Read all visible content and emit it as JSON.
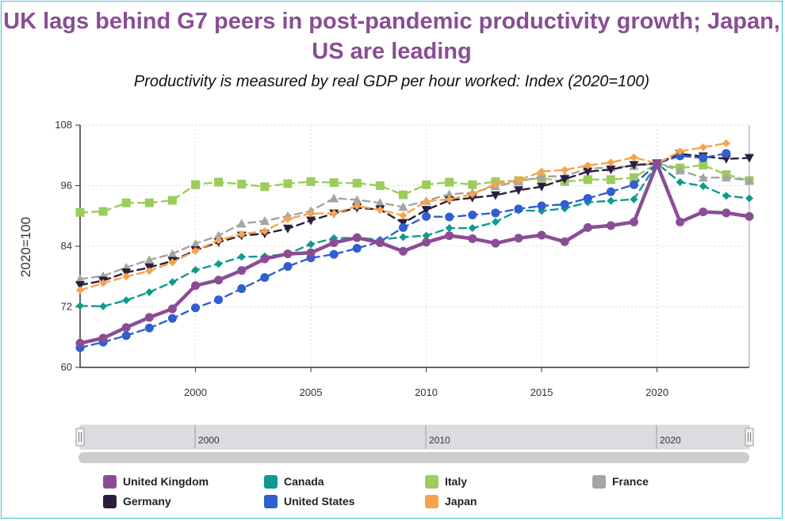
{
  "title": "UK lags behind G7 peers in post-pandemic productivity growth; Japan, US are leading",
  "subtitle": "Productivity is measured by real GDP per hour worked: Index (2020=100)",
  "navigator": {
    "labels": [
      "2000",
      "2010",
      "2020"
    ]
  },
  "chart_data": {
    "type": "line",
    "title": "UK lags behind G7 peers in post-pandemic productivity growth; Japan, US are leading",
    "subtitle": "Productivity is measured by real GDP per hour worked: Index (2020=100)",
    "ylabel": "2020=100",
    "xlabel": "",
    "xlim": [
      1995,
      2024
    ],
    "ylim": [
      60,
      108
    ],
    "x_ticks": [
      2000,
      2005,
      2010,
      2015,
      2020
    ],
    "y_ticks": [
      60,
      72,
      84,
      96,
      108
    ],
    "grid": true,
    "legend_position": "bottom",
    "x": [
      1995,
      1996,
      1997,
      1998,
      1999,
      2000,
      2001,
      2002,
      2003,
      2004,
      2005,
      2006,
      2007,
      2008,
      2009,
      2010,
      2011,
      2012,
      2013,
      2014,
      2015,
      2016,
      2017,
      2018,
      2019,
      2020,
      2021,
      2022,
      2023,
      2024
    ],
    "series": [
      {
        "name": "United Kingdom",
        "color": "#8a4d95",
        "marker": "circle",
        "dash": "solid",
        "values": [
          64.8,
          65.8,
          67.9,
          69.9,
          71.6,
          76.2,
          77.3,
          79.2,
          81.5,
          82.5,
          82.7,
          84.7,
          85.7,
          84.7,
          83.0,
          84.8,
          86.1,
          85.5,
          84.6,
          85.6,
          86.2,
          84.9,
          87.7,
          88.1,
          88.8,
          100.3,
          88.8,
          90.8,
          90.6,
          89.9
        ]
      },
      {
        "name": "Canada",
        "color": "#0f9a8f",
        "marker": "diamond",
        "dash": "dashed",
        "values": [
          72.2,
          72.1,
          73.3,
          74.9,
          76.9,
          79.3,
          80.5,
          81.9,
          82.0,
          82.5,
          84.4,
          85.6,
          85.7,
          85.3,
          85.8,
          86.1,
          87.6,
          87.6,
          88.8,
          91.1,
          91.0,
          91.5,
          92.7,
          93.0,
          93.3,
          100.4,
          96.7,
          95.9,
          94.0,
          93.5
        ]
      },
      {
        "name": "Italy",
        "color": "#9ccc5c",
        "marker": "square",
        "dash": "dashed",
        "values": [
          90.7,
          90.9,
          92.6,
          92.6,
          93.1,
          96.2,
          96.7,
          96.3,
          95.8,
          96.4,
          96.8,
          96.6,
          96.5,
          96.0,
          94.2,
          96.2,
          96.7,
          96.2,
          96.8,
          97.0,
          97.5,
          96.8,
          97.2,
          97.2,
          97.6,
          100.4,
          99.5,
          100.1,
          98.2,
          97.0
        ]
      },
      {
        "name": "France",
        "color": "#a4a4a4",
        "marker": "triangle-up",
        "dash": "dashed",
        "values": [
          77.5,
          78.1,
          79.8,
          81.3,
          82.5,
          84.5,
          86.1,
          88.5,
          89.0,
          90.0,
          91.0,
          93.5,
          93.2,
          92.6,
          91.8,
          93.0,
          94.3,
          94.6,
          95.9,
          96.8,
          97.8,
          97.9,
          99.4,
          99.6,
          99.9,
          100.4,
          99.0,
          97.6,
          97.6,
          97.0
        ]
      },
      {
        "name": "Germany",
        "color": "#2c1d3e",
        "marker": "triangle-down",
        "dash": "dashed",
        "values": [
          76.3,
          77.2,
          78.8,
          79.8,
          81.1,
          83.2,
          84.8,
          86.1,
          86.5,
          87.5,
          89.1,
          90.5,
          91.6,
          91.3,
          88.6,
          91.2,
          93.1,
          93.6,
          94.1,
          95.1,
          95.8,
          97.3,
          98.8,
          99.2,
          100.1,
          100.4,
          102.3,
          101.8,
          101.3,
          101.5
        ]
      },
      {
        "name": "United States",
        "color": "#2f5fd0",
        "marker": "circle",
        "dash": "dashed",
        "values": [
          63.9,
          65.0,
          66.3,
          67.8,
          69.7,
          71.8,
          73.4,
          75.6,
          77.8,
          80.0,
          81.7,
          82.4,
          83.6,
          84.9,
          87.7,
          89.9,
          89.8,
          90.2,
          90.6,
          91.4,
          92.0,
          92.3,
          93.5,
          94.8,
          96.2,
          100.4,
          101.9,
          101.5,
          102.4,
          null
        ]
      },
      {
        "name": "Japan",
        "color": "#f7a34b",
        "marker": "diamond",
        "dash": "dashed",
        "values": [
          75.3,
          76.7,
          78.0,
          79.1,
          80.8,
          83.1,
          85.2,
          86.4,
          87.0,
          89.4,
          90.5,
          90.5,
          92.0,
          91.2,
          90.1,
          92.9,
          93.3,
          94.3,
          96.3,
          97.1,
          98.8,
          99.1,
          100.0,
          100.6,
          101.6,
          100.4,
          102.8,
          103.6,
          104.4,
          null
        ]
      }
    ]
  }
}
